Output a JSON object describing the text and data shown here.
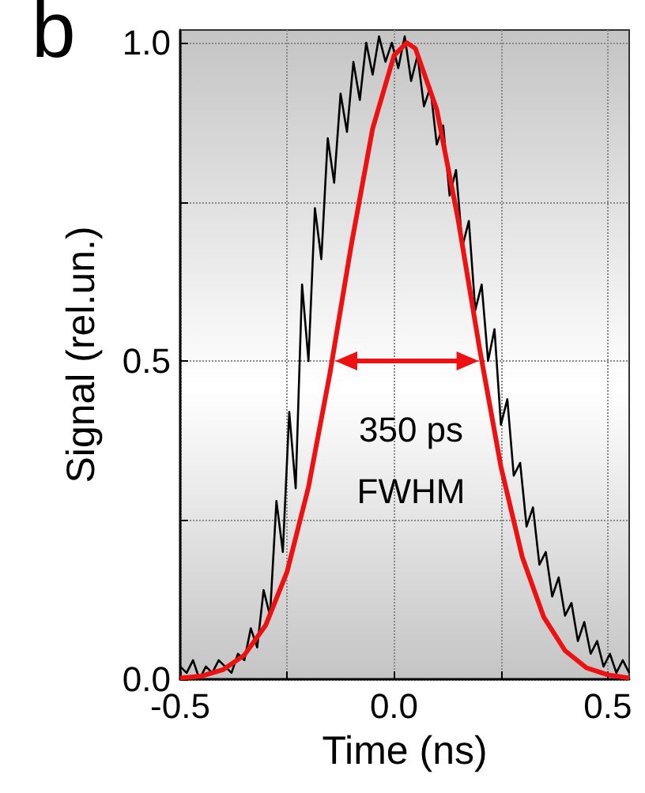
{
  "chart_data": {
    "type": "line",
    "xlabel": "Time (ns)",
    "ylabel": "Signal (rel.un.)",
    "annotations": [
      "b",
      "350 ps",
      "FWHM"
    ],
    "xlim": [
      -0.5,
      0.55
    ],
    "xticks": [
      -0.5,
      {
        "value": -0.25,
        "label": null
      },
      {
        "value": 0,
        "label": "0.0"
      },
      {
        "value": 0.25,
        "label": null
      },
      0.5
    ],
    "ylim": [
      0,
      1.02
    ],
    "yticks": [
      {
        "value": 0,
        "label": "0.0"
      },
      {
        "value": 0.25,
        "label": null
      },
      0.5,
      {
        "value": 0.75,
        "label": null
      },
      {
        "value": 1,
        "label": "1.0"
      }
    ],
    "grid": true,
    "marker": "none",
    "line_style": "solid",
    "series": [
      {
        "color": "#000000",
        "x": [
          -0.5,
          -0.485,
          -0.47,
          -0.455,
          -0.44,
          -0.425,
          -0.41,
          -0.395,
          -0.38,
          -0.365,
          -0.35,
          -0.335,
          -0.32,
          -0.305,
          -0.29,
          -0.275,
          -0.26,
          -0.245,
          -0.23,
          -0.215,
          -0.2,
          -0.185,
          -0.17,
          -0.155,
          -0.14,
          -0.125,
          -0.11,
          -0.095,
          -0.08,
          -0.065,
          -0.05,
          -0.035,
          -0.02,
          -0.005,
          0.01,
          0.025,
          0.04,
          0.055,
          0.07,
          0.085,
          0.1,
          0.115,
          0.13,
          0.145,
          0.16,
          0.175,
          0.19,
          0.205,
          0.22,
          0.235,
          0.25,
          0.265,
          0.28,
          0.295,
          0.31,
          0.325,
          0.34,
          0.355,
          0.37,
          0.385,
          0.4,
          0.415,
          0.43,
          0.445,
          0.46,
          0.475,
          0.49,
          0.505,
          0.52,
          0.535,
          0.55
        ],
        "values": [
          0.02,
          0.01,
          0.03,
          0.0,
          0.02,
          0.01,
          0.03,
          0.02,
          0.01,
          0.04,
          0.03,
          0.08,
          0.05,
          0.14,
          0.1,
          0.28,
          0.2,
          0.42,
          0.3,
          0.62,
          0.5,
          0.74,
          0.66,
          0.85,
          0.78,
          0.92,
          0.86,
          0.97,
          0.91,
          1.0,
          0.95,
          1.01,
          0.97,
          1.0,
          0.96,
          1.01,
          0.94,
          0.98,
          0.9,
          0.93,
          0.84,
          0.87,
          0.76,
          0.8,
          0.68,
          0.72,
          0.58,
          0.62,
          0.5,
          0.55,
          0.4,
          0.44,
          0.32,
          0.34,
          0.24,
          0.27,
          0.18,
          0.2,
          0.13,
          0.16,
          0.1,
          0.12,
          0.06,
          0.09,
          0.04,
          0.06,
          0.02,
          0.04,
          0.01,
          0.03,
          0.01
        ]
      },
      {
        "color": "#ee1111",
        "x": [
          -0.5,
          -0.45,
          -0.4,
          -0.35,
          -0.3,
          -0.25,
          -0.2,
          -0.15,
          -0.1,
          -0.05,
          0,
          0.03,
          0.05,
          0.1,
          0.15,
          0.2,
          0.25,
          0.3,
          0.35,
          0.4,
          0.45,
          0.5,
          0.55
        ],
        "values": [
          0.002,
          0.005,
          0.015,
          0.038,
          0.085,
          0.169,
          0.302,
          0.48,
          0.682,
          0.865,
          0.98,
          1.0,
          0.991,
          0.895,
          0.722,
          0.52,
          0.334,
          0.192,
          0.098,
          0.045,
          0.018,
          0.007,
          0.002
        ]
      }
    ]
  }
}
